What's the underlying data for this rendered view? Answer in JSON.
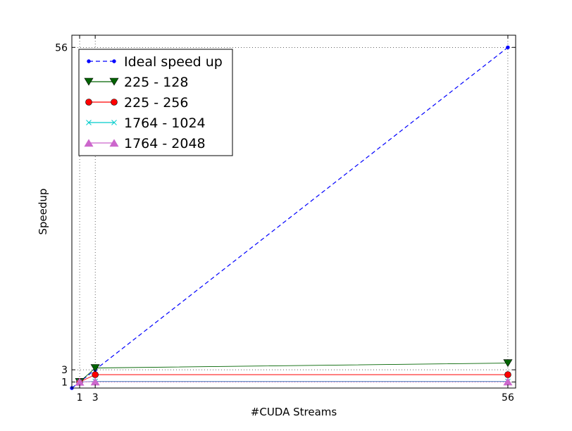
{
  "chart_data": {
    "type": "line",
    "title": "",
    "xlabel": "#CUDA Streams",
    "ylabel": "Speedup",
    "xlim": [
      0,
      57
    ],
    "ylim": [
      0,
      58
    ],
    "xticks": [
      1,
      3,
      56
    ],
    "yticks": [
      1,
      3,
      56
    ],
    "grid": "dotted at tick positions",
    "legend_position": "upper-left",
    "series": [
      {
        "name": "Ideal speed up",
        "color": "#0000ff",
        "marker": "point",
        "linestyle": "dashed",
        "x": [
          0,
          1,
          3,
          56
        ],
        "y": [
          0,
          1,
          3,
          56
        ]
      },
      {
        "name": "225 - 128",
        "color": "#006400",
        "marker": "triangle-down",
        "linestyle": "solid",
        "x": [
          1,
          3,
          56
        ],
        "y": [
          1,
          3.3,
          4.1
        ]
      },
      {
        "name": "225 - 256",
        "color": "#ff0000",
        "marker": "circle",
        "linestyle": "solid",
        "x": [
          1,
          3,
          56
        ],
        "y": [
          1,
          2.2,
          2.2
        ]
      },
      {
        "name": "1764 - 1024",
        "color": "#00cccc",
        "marker": "x",
        "linestyle": "solid",
        "x": [
          1,
          3,
          56
        ],
        "y": [
          1,
          1.1,
          1.1
        ]
      },
      {
        "name": "1764 - 2048",
        "color": "#cc66cc",
        "marker": "triangle-up",
        "linestyle": "solid",
        "x": [
          1,
          3,
          56
        ],
        "y": [
          1,
          1.05,
          1.05
        ]
      }
    ]
  }
}
